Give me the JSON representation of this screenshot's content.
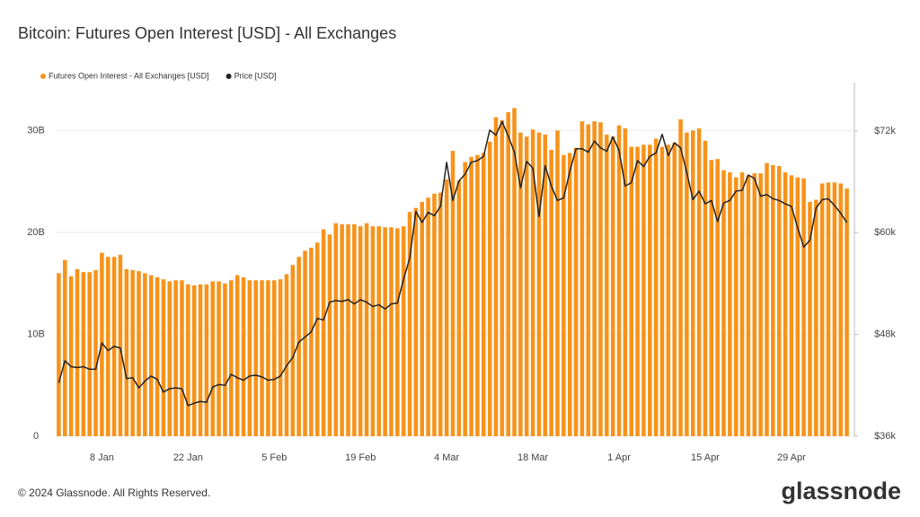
{
  "chart_data": {
    "type": "bar_line",
    "title": "Bitcoin: Futures Open Interest [USD] - All Exchanges",
    "footer": "© 2024 Glassnode. All Rights Reserved.",
    "brand": "glassnode",
    "categories": [
      null,
      null,
      null,
      null,
      null,
      null,
      null,
      "8 Jan",
      null,
      null,
      null,
      null,
      null,
      null,
      null,
      null,
      null,
      null,
      null,
      null,
      null,
      "22 Jan",
      null,
      null,
      null,
      null,
      null,
      null,
      null,
      null,
      null,
      null,
      null,
      null,
      null,
      "5 Feb",
      null,
      null,
      null,
      null,
      null,
      null,
      null,
      null,
      null,
      null,
      null,
      null,
      null,
      "19 Feb",
      null,
      null,
      null,
      null,
      null,
      null,
      null,
      null,
      null,
      null,
      null,
      null,
      null,
      "4 Mar",
      null,
      null,
      null,
      null,
      null,
      null,
      null,
      null,
      null,
      null,
      null,
      null,
      null,
      "18 Mar",
      null,
      null,
      null,
      null,
      null,
      null,
      null,
      null,
      null,
      null,
      null,
      null,
      null,
      "1 Apr",
      null,
      null,
      null,
      null,
      null,
      null,
      null,
      null,
      null,
      null,
      null,
      null,
      null,
      "15 Apr",
      null,
      null,
      null,
      null,
      null,
      null,
      null,
      null,
      null,
      null,
      null,
      null,
      null,
      "29 Apr",
      null,
      null,
      null,
      null,
      null,
      null,
      null,
      null,
      null
    ],
    "series": [
      {
        "name": "Futures Open Interest - All Exchanges [USD]",
        "color": "#f7931a",
        "type": "bar",
        "values": [
          16.0,
          17.3,
          15.7,
          16.4,
          16.1,
          16.1,
          16.3,
          18.0,
          17.6,
          17.6,
          17.8,
          16.4,
          16.3,
          16.2,
          16.0,
          15.8,
          15.6,
          15.4,
          15.2,
          15.3,
          15.3,
          14.9,
          14.8,
          14.9,
          14.9,
          15.2,
          15.2,
          15.0,
          15.3,
          15.8,
          15.6,
          15.3,
          15.3,
          15.3,
          15.3,
          15.3,
          15.4,
          15.9,
          16.8,
          17.6,
          18.2,
          18.5,
          19.0,
          20.3,
          19.8,
          20.9,
          20.8,
          20.8,
          20.8,
          20.6,
          20.9,
          20.6,
          20.6,
          20.5,
          20.5,
          20.4,
          20.6,
          22.0,
          22.4,
          23.0,
          23.4,
          23.8,
          23.9,
          25.2,
          28.0,
          25.1,
          26.9,
          27.4,
          27.6,
          27.8,
          28.9,
          31.3,
          31.0,
          31.8,
          32.2,
          29.8,
          29.4,
          30.1,
          29.8,
          29.6,
          28.1,
          30.0,
          27.6,
          27.8,
          28.3,
          30.9,
          30.6,
          30.9,
          30.8,
          29.6,
          29.4,
          30.5,
          30.2,
          28.4,
          28.4,
          28.6,
          28.6,
          29.2,
          28.4,
          28.6,
          28.8,
          31.1,
          29.8,
          30.0,
          30.2,
          29.0,
          27.1,
          27.2,
          26.1,
          25.9,
          25.4,
          25.9,
          25.6,
          25.8,
          25.8,
          26.8,
          26.6,
          26.5,
          25.9,
          25.6,
          25.4,
          25.3,
          23.0,
          23.2,
          24.8,
          24.9,
          24.9,
          24.8,
          24.3
        ]
      },
      {
        "name": "Price [USD]",
        "color": "#222222",
        "type": "line",
        "axis": "y2",
        "values": [
          42300,
          44900,
          44200,
          44100,
          44200,
          43900,
          43900,
          47000,
          46100,
          46600,
          46400,
          42800,
          42900,
          41700,
          42500,
          43100,
          42700,
          41200,
          41600,
          41700,
          41600,
          39600,
          39900,
          40100,
          40000,
          41800,
          42100,
          42000,
          43300,
          42900,
          42600,
          43100,
          43200,
          43000,
          42600,
          42700,
          43100,
          44300,
          45300,
          47100,
          47700,
          48300,
          49900,
          49700,
          51800,
          52000,
          51900,
          52100,
          51600,
          52100,
          51800,
          51300,
          51500,
          51000,
          51600,
          51700,
          54500,
          57000,
          62500,
          61200,
          62400,
          62000,
          63100,
          68300,
          63800,
          66100,
          66900,
          68300,
          68500,
          69000,
          72100,
          71500,
          73100,
          71400,
          69500,
          65300,
          68400,
          67600,
          61900,
          67900,
          65500,
          63800,
          64100,
          67200,
          69900,
          69900,
          69500,
          70800,
          70000,
          69600,
          71300,
          69700,
          65500,
          65900,
          68500,
          67800,
          69000,
          69400,
          71600,
          69100,
          70600,
          70000,
          67100,
          63900,
          64900,
          63400,
          63800,
          61300,
          63500,
          63800,
          64900,
          65000,
          66800,
          66400,
          64300,
          64500,
          64000,
          63800,
          63400,
          63100,
          60600,
          58300,
          59100,
          62900,
          63900,
          64000,
          63200,
          62300,
          61200
        ]
      }
    ],
    "ylim": [
      0,
      34.7
    ],
    "yticks": [
      0,
      {
        "value": 10,
        "label": "10B"
      },
      {
        "value": 20,
        "label": "20B"
      },
      {
        "value": 30,
        "label": "30B"
      }
    ],
    "y2lim": [
      36000,
      77700
    ],
    "y2ticks": [
      {
        "value": 36000,
        "label": "$36k"
      },
      {
        "value": 48000,
        "label": "$48k"
      },
      {
        "value": 60000,
        "label": "$60k"
      },
      {
        "value": 72000,
        "label": "$72k"
      }
    ],
    "grid": true
  }
}
